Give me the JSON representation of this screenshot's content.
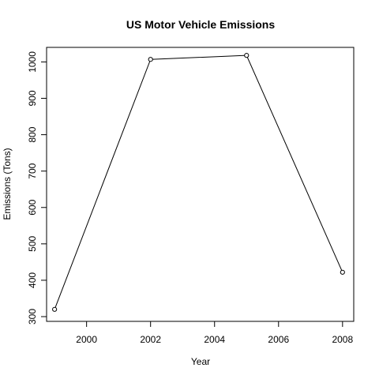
{
  "chart_data": {
    "type": "line",
    "title": "US Motor Vehicle Emissions",
    "xlabel": "Year",
    "ylabel": "Emissions (Tons)",
    "x": [
      1999,
      2002,
      2005,
      2008
    ],
    "y": [
      320,
      1007,
      1018,
      422
    ],
    "xlim": [
      1998.75,
      2008.35
    ],
    "ylim": [
      287,
      1040
    ],
    "xticks": [
      2000,
      2002,
      2004,
      2006,
      2008
    ],
    "yticks": [
      300,
      400,
      500,
      600,
      700,
      800,
      900,
      1000
    ],
    "marker": "open-circle",
    "line_color": "#000000",
    "grid": false,
    "legend": "none"
  }
}
